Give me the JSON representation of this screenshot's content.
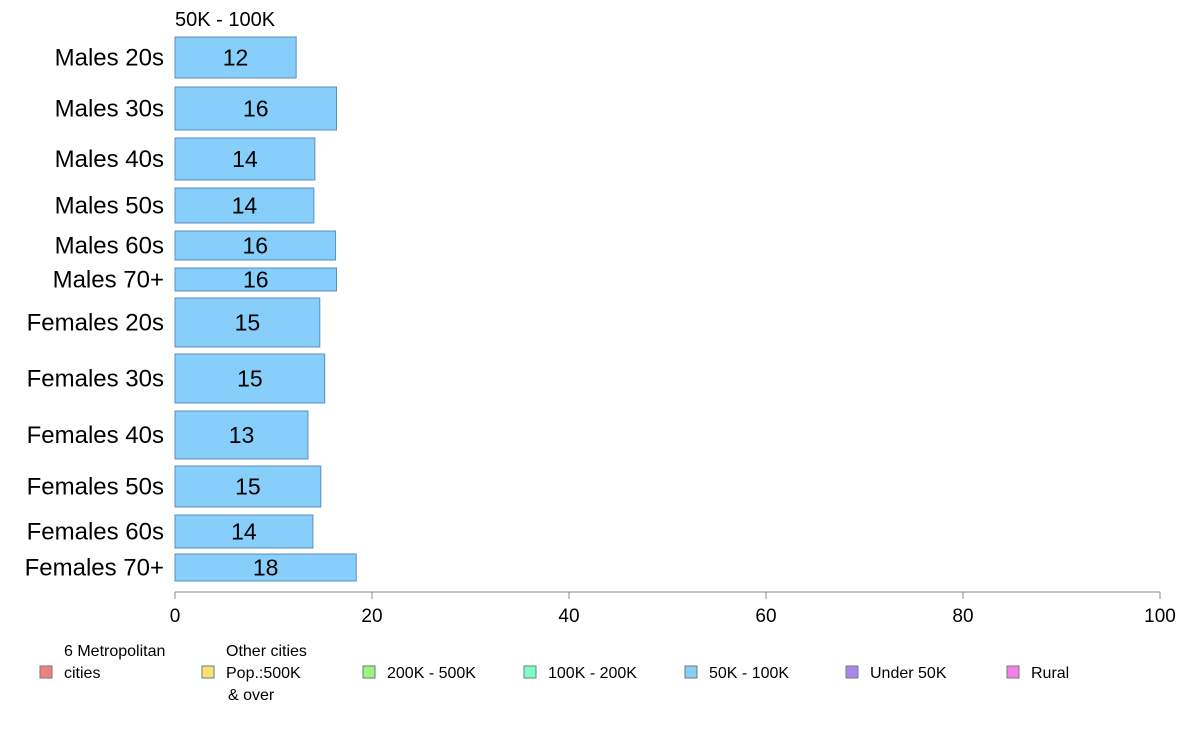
{
  "chart_data": {
    "type": "bar",
    "orientation": "horizontal",
    "panel_title": "50K - 100K",
    "categories": [
      "Males 20s",
      "Males 30s",
      "Males 40s",
      "Males 50s",
      "Males 60s",
      "Males 70+",
      "Females 20s",
      "Females 30s",
      "Females 40s",
      "Females 50s",
      "Females 60s",
      "Females 70+"
    ],
    "values": [
      12.3,
      16.4,
      14.2,
      14.1,
      16.3,
      16.4,
      14.7,
      15.2,
      13.5,
      14.8,
      14.0,
      18.4
    ],
    "value_labels": [
      "12",
      "16",
      "14",
      "14",
      "16",
      "16",
      "15",
      "15",
      "13",
      "15",
      "14",
      "18"
    ],
    "xlim": [
      0,
      100
    ],
    "xticks": [
      0,
      20,
      40,
      60,
      80,
      100
    ],
    "grid": false,
    "bar_color": "#87cefa",
    "bar_stroke": "#5b8fc0",
    "legend_position": "bottom",
    "legend": [
      {
        "label": "6 Metropolitan\ncities",
        "color": "#f08080"
      },
      {
        "label": "Other cities\nPop.:500K\n& over",
        "color": "#f5e27a"
      },
      {
        "label": "200K - 500K",
        "color": "#98f57e"
      },
      {
        "label": "100K - 200K",
        "color": "#7fffc4"
      },
      {
        "label": "50K - 100K",
        "color": "#87cefa"
      },
      {
        "label": "Under 50K",
        "color": "#a886f0"
      },
      {
        "label": "Rural",
        "color": "#f57fe8"
      }
    ]
  }
}
